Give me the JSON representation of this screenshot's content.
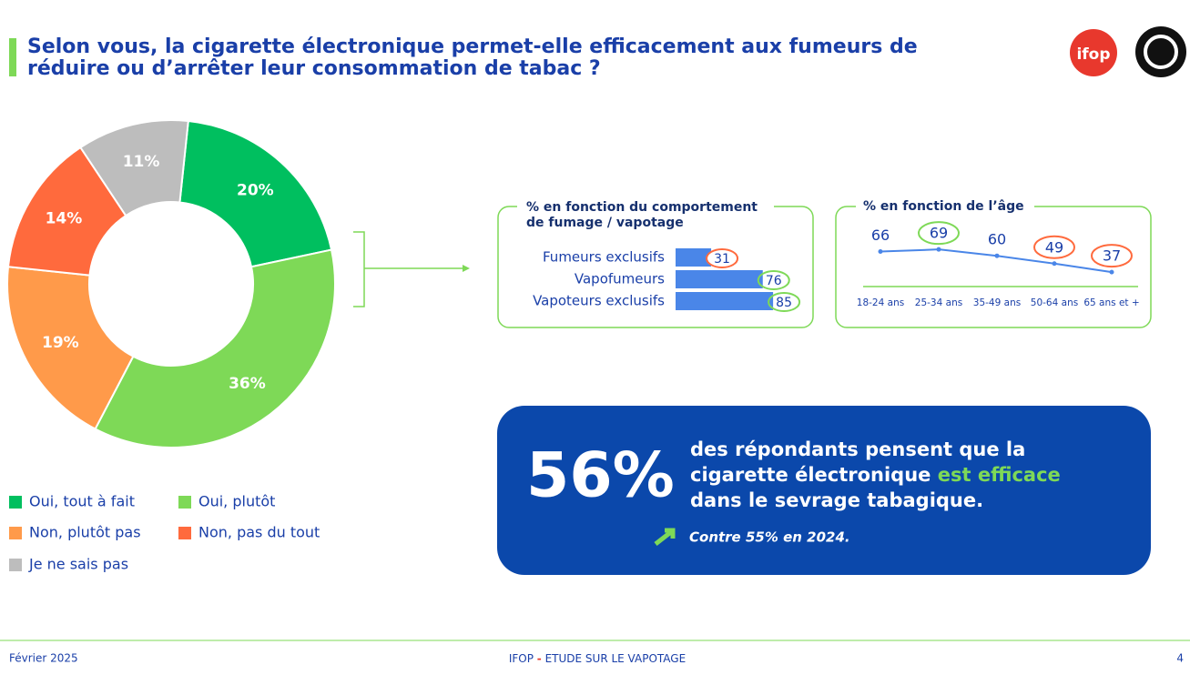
{
  "header": {
    "title_lines": [
      "Selon vous, la cigarette électronique permet-elle efficacement aux fumeurs de",
      "réduire ou d’arrêter leur consommation de tabac ?"
    ],
    "logo": "ifop"
  },
  "chart_data": [
    {
      "type": "pie",
      "categories": [
        "Oui, tout à fait",
        "Oui, plutôt",
        "Non, plutôt pas",
        "Non, pas du tout",
        "Je ne sais pas"
      ],
      "values": [
        20,
        36,
        19,
        14,
        11
      ],
      "value_labels": [
        "20%",
        "36%",
        "19%",
        "14%",
        "11%"
      ],
      "colors": [
        "#00bf5f",
        "#7ed957",
        "#ff9a4a",
        "#ff6a3d",
        "#bdbdbd"
      ]
    },
    {
      "type": "hbar",
      "title_lines": [
        "% en fonction du comportement",
        "de fumage / vapotage"
      ],
      "categories": [
        "Fumeurs exclusifs",
        "Vapofumeurs",
        "Vapoteurs exclusifs"
      ],
      "values": [
        31,
        76,
        85
      ],
      "color": "#4a86e8",
      "highlights": [
        "#ff6a3d",
        "#7ed957",
        "#7ed957"
      ]
    },
    {
      "type": "line",
      "title": "% en fonction de l’âge",
      "categories": [
        "18-24 ans",
        "25-34 ans",
        "35-49 ans",
        "50-64 ans",
        "65 ans et +"
      ],
      "values": [
        66,
        69,
        60,
        49,
        37
      ],
      "color": "#4a86e8",
      "highlights": [
        null,
        "#7ed957",
        null,
        "#ff6a3d",
        "#ff6a3d"
      ]
    }
  ],
  "callout": {
    "big": "56%",
    "line1": "des répondants pensent que la",
    "line2": "cigarette électronique",
    "highlight": "est efficace",
    "line3": "dans le sevrage tabagique.",
    "note": "Contre 55% en 2024."
  },
  "footer": {
    "date": "Février 2025",
    "org": "IFOP",
    "sep": "-",
    "study": "ETUDE SUR LE VAPOTAGE",
    "page": "4"
  }
}
